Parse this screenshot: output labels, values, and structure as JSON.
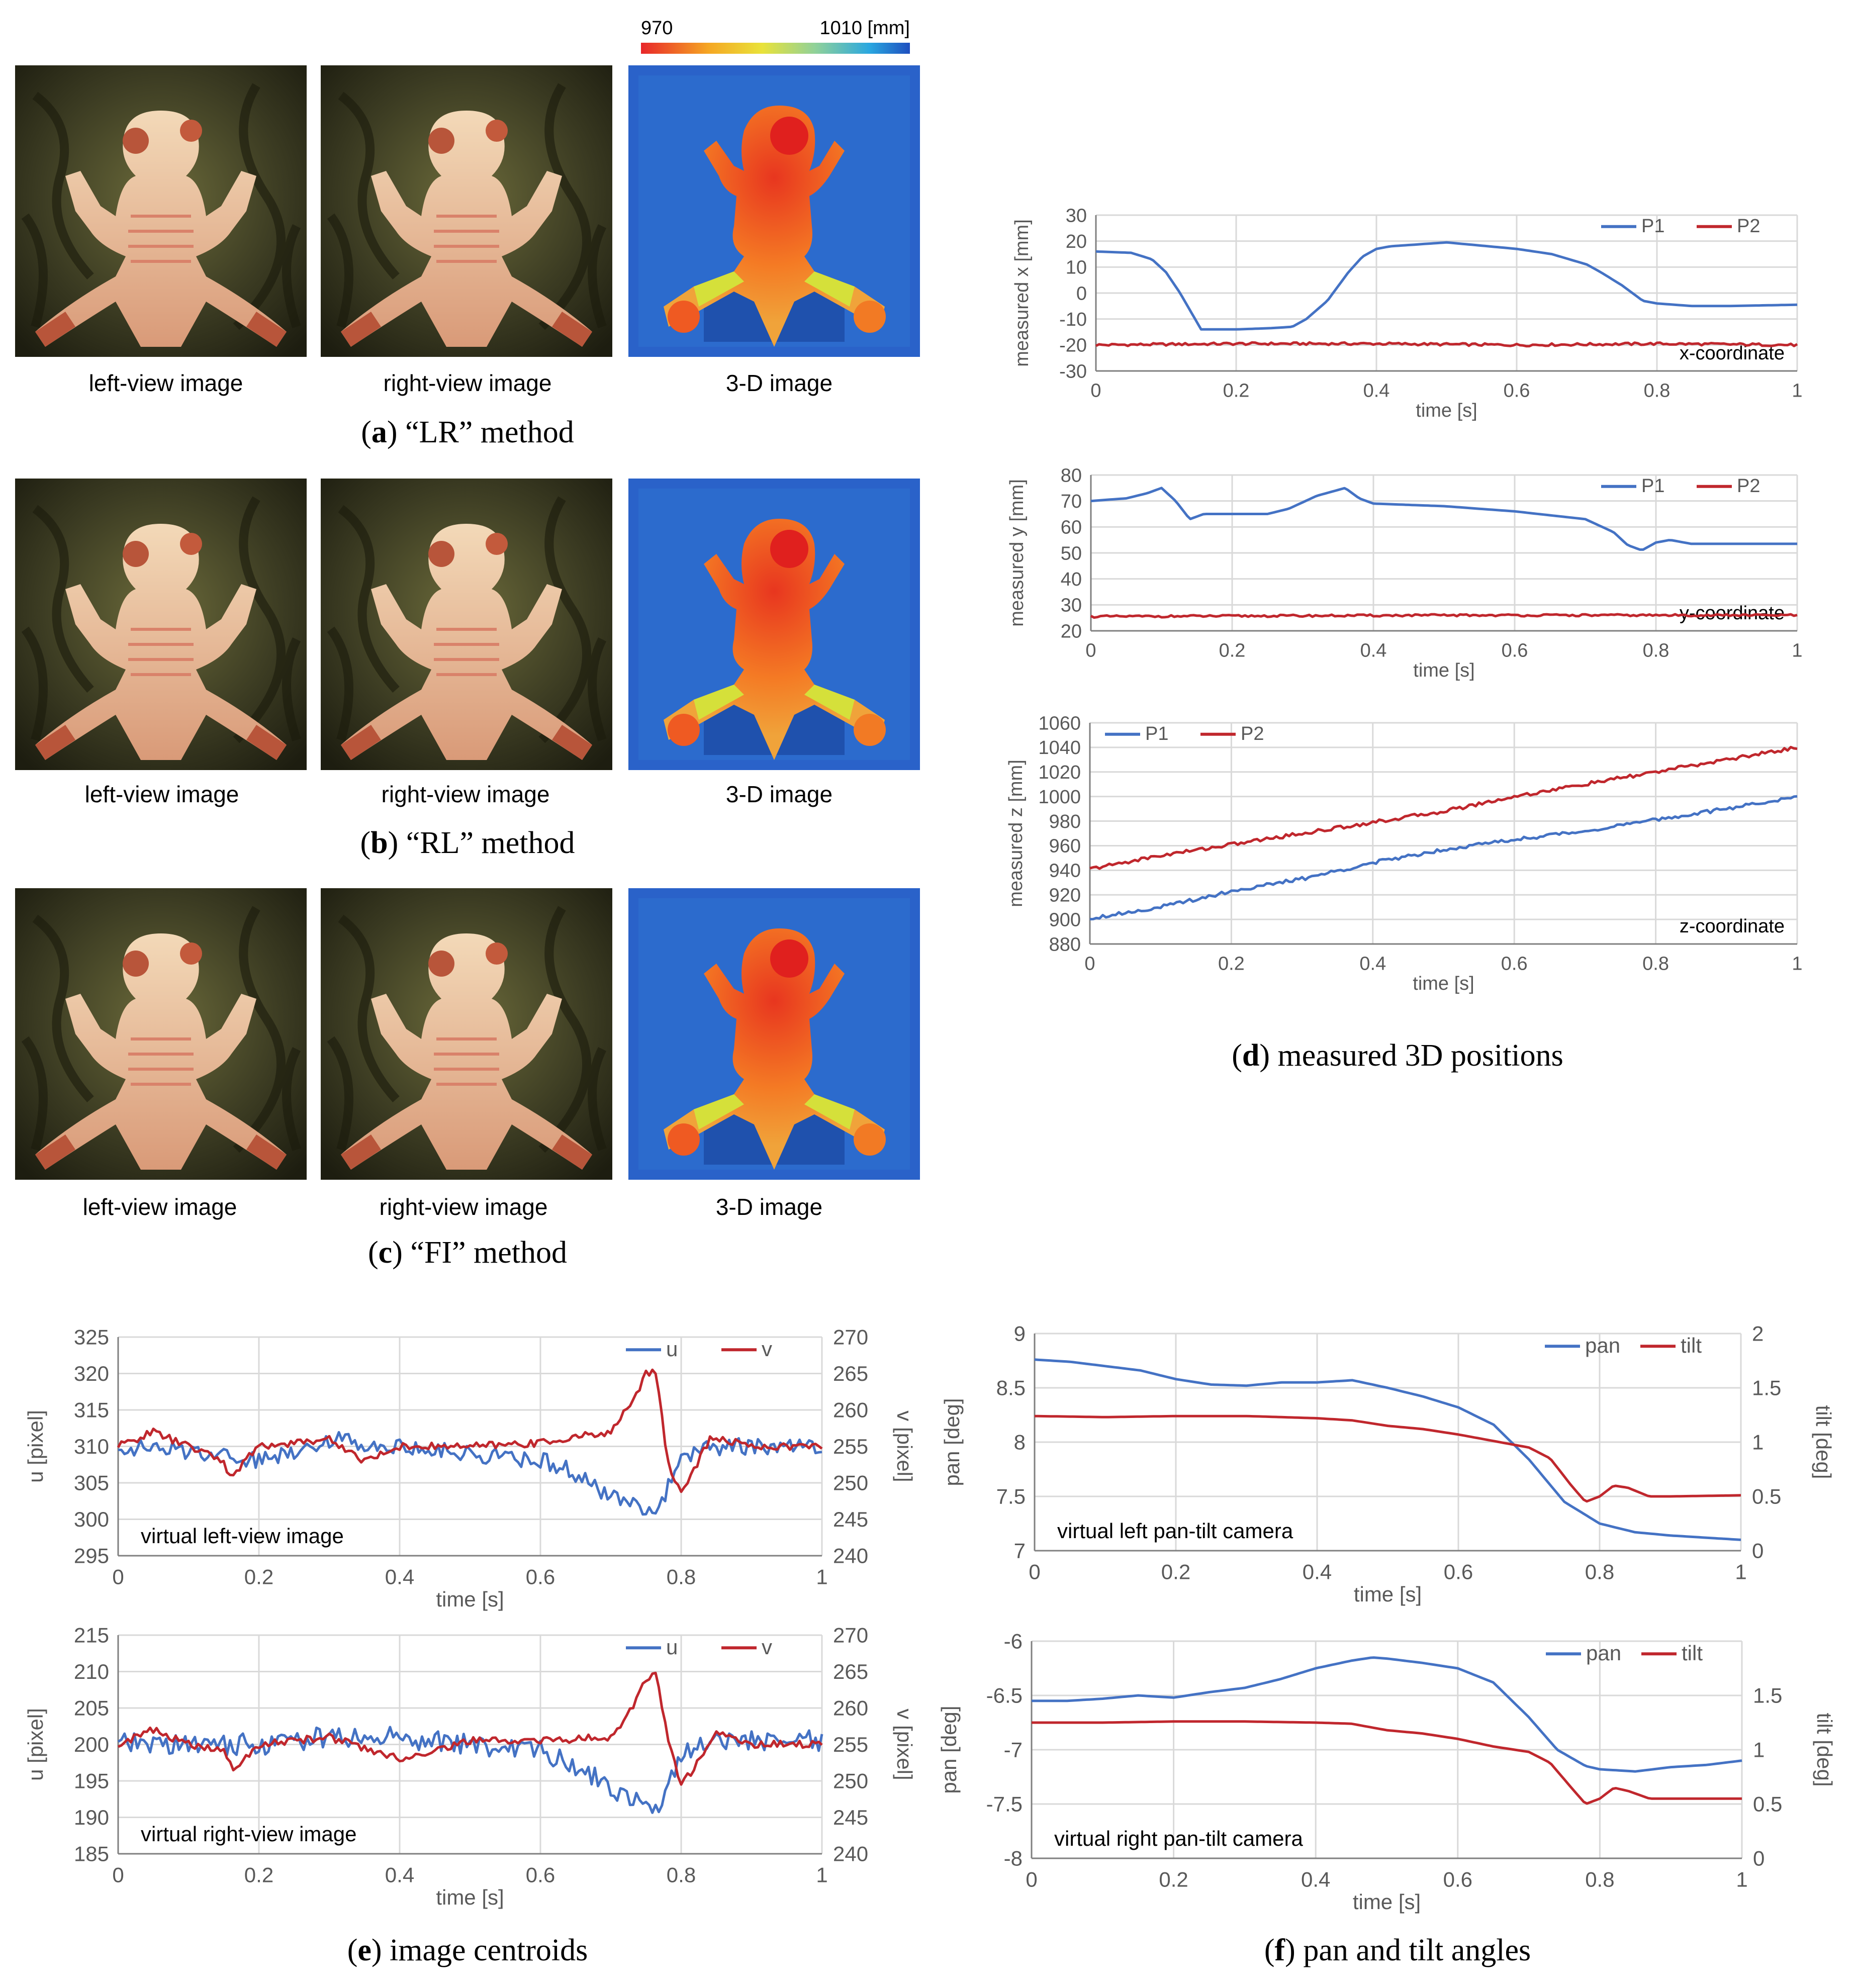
{
  "colorbar": {
    "min_label": "970",
    "max_label": "1010 [mm]"
  },
  "panels": {
    "a": {
      "letter": "a",
      "caption": "“LR” method",
      "labels": [
        "left-view image",
        "right-view image",
        "3-D image"
      ]
    },
    "b": {
      "letter": "b",
      "caption": "“RL” method",
      "labels": [
        "left-view image",
        "right-view image",
        "3-D image"
      ]
    },
    "c": {
      "letter": "c",
      "caption": "“FI” method",
      "labels": [
        "left-view image",
        "right-view image",
        "3-D image"
      ]
    },
    "d": {
      "letter": "d",
      "caption": "measured 3D positions"
    },
    "e": {
      "letter": "e",
      "caption": "image centroids"
    },
    "f": {
      "letter": "f",
      "caption": "pan and tilt angles"
    }
  },
  "colors": {
    "blue": "#4472c4",
    "red": "#c0272d",
    "grid": "#d9d9d9",
    "axis": "#7f7f7f",
    "text": "#595959"
  },
  "chart_data": [
    {
      "id": "dx",
      "type": "line",
      "title": "",
      "annotation": "x-coordinate",
      "xlabel": "time [s]",
      "ylabel": "measured  x [mm]",
      "xlim": [
        0,
        1
      ],
      "ylim": [
        -30,
        30
      ],
      "xticks": [
        "0",
        "0.2",
        "0.4",
        "0.6",
        "0.8",
        "1"
      ],
      "yticks": [
        "-30",
        "-20",
        "-10",
        "0",
        "10",
        "20",
        "30"
      ],
      "legend": "top-right",
      "series": [
        {
          "name": "P1",
          "color": "#4472c4",
          "x": [
            0,
            0.05,
            0.08,
            0.1,
            0.12,
            0.15,
            0.2,
            0.25,
            0.28,
            0.3,
            0.33,
            0.36,
            0.38,
            0.4,
            0.42,
            0.5,
            0.6,
            0.65,
            0.7,
            0.72,
            0.75,
            0.78,
            0.8,
            0.85,
            0.9,
            1.0
          ],
          "y": [
            16,
            15.5,
            13,
            8,
            0,
            -14,
            -14,
            -13.5,
            -13,
            -10,
            -3,
            8,
            14,
            17,
            18,
            19.5,
            17,
            15,
            11,
            8,
            3,
            -3,
            -4,
            -5,
            -5,
            -4.5
          ]
        },
        {
          "name": "P2",
          "color": "#c0272d",
          "x": [
            0,
            0.2,
            0.4,
            0.6,
            0.8,
            1.0
          ],
          "y": [
            -20,
            -19.5,
            -19.5,
            -20,
            -19.5,
            -20
          ],
          "noise": 0.5
        }
      ]
    },
    {
      "id": "dy",
      "type": "line",
      "title": "",
      "annotation": "y-coordinate",
      "xlabel": "time [s]",
      "ylabel": "measured  y [mm]",
      "xlim": [
        0,
        1
      ],
      "ylim": [
        20,
        80
      ],
      "xticks": [
        "0",
        "0.2",
        "0.4",
        "0.6",
        "0.8",
        "1"
      ],
      "yticks": [
        "20",
        "30",
        "40",
        "50",
        "60",
        "70",
        "80"
      ],
      "legend": "top-right",
      "series": [
        {
          "name": "P1",
          "color": "#4472c4",
          "x": [
            0,
            0.05,
            0.08,
            0.1,
            0.12,
            0.14,
            0.16,
            0.2,
            0.25,
            0.28,
            0.32,
            0.36,
            0.38,
            0.4,
            0.5,
            0.6,
            0.7,
            0.74,
            0.76,
            0.78,
            0.8,
            0.82,
            0.85,
            1.0
          ],
          "y": [
            70,
            71,
            73,
            75,
            70,
            63,
            65,
            65,
            65,
            67,
            72,
            75,
            71,
            69,
            68,
            66,
            63,
            58,
            53,
            51,
            54,
            55,
            53.5,
            53.5
          ]
        },
        {
          "name": "P2",
          "color": "#c0272d",
          "x": [
            0,
            0.5,
            1.0
          ],
          "y": [
            25.5,
            26,
            26
          ],
          "noise": 0.4
        }
      ]
    },
    {
      "id": "dz",
      "type": "line",
      "title": "",
      "annotation": "z-coordinate",
      "xlabel": "time [s]",
      "ylabel": "measured  z [mm]",
      "xlim": [
        0,
        1
      ],
      "ylim": [
        880,
        1060
      ],
      "xticks": [
        "0",
        "0.2",
        "0.4",
        "0.6",
        "0.8",
        "1"
      ],
      "yticks": [
        "880",
        "900",
        "920",
        "940",
        "960",
        "980",
        "1000",
        "1020",
        "1040",
        "1060"
      ],
      "legend": "top-left",
      "series": [
        {
          "name": "P1",
          "color": "#4472c4",
          "x": [
            0,
            0.1,
            0.2,
            0.3,
            0.4,
            0.5,
            0.6,
            0.7,
            0.8,
            0.9,
            1.0
          ],
          "y": [
            901,
            910,
            923,
            933,
            946,
            957,
            965,
            972,
            981,
            990,
            1000
          ],
          "noise": 1.5
        },
        {
          "name": "P2",
          "color": "#c0272d",
          "x": [
            0,
            0.1,
            0.2,
            0.3,
            0.4,
            0.5,
            0.6,
            0.7,
            0.8,
            0.9,
            1.0
          ],
          "y": [
            941,
            952,
            961,
            970,
            979,
            988,
            1000,
            1010,
            1020,
            1030,
            1040
          ],
          "noise": 1.5
        }
      ]
    },
    {
      "id": "e1",
      "type": "line",
      "title": "",
      "annotation": "virtual left-view image",
      "xlabel": "time [s]",
      "ylabel": "u [pixel]",
      "y2label": "v [pixel]",
      "xlim": [
        0,
        1
      ],
      "ylim": [
        295,
        325
      ],
      "y2lim": [
        240,
        270
      ],
      "xticks": [
        "0",
        "0.2",
        "0.4",
        "0.6",
        "0.8",
        "1"
      ],
      "yticks": [
        "295",
        "300",
        "305",
        "310",
        "315",
        "320",
        "325"
      ],
      "y2ticks": [
        "240",
        "245",
        "250",
        "255",
        "260",
        "265",
        "270"
      ],
      "legend": "top-right",
      "series": [
        {
          "name": "u",
          "color": "#4472c4",
          "axis": "left",
          "x": [
            0,
            0.15,
            0.2,
            0.3,
            0.4,
            0.5,
            0.6,
            0.64,
            0.68,
            0.7,
            0.74,
            0.76,
            0.77,
            0.78,
            0.8,
            0.83,
            0.9,
            1.0
          ],
          "y": [
            310,
            309,
            308,
            311,
            310,
            309,
            308,
            307,
            304,
            303,
            302,
            301.5,
            302,
            304,
            308,
            310,
            310,
            310
          ],
          "noise": 1.2
        },
        {
          "name": "v",
          "color": "#c0272d",
          "axis": "right",
          "x": [
            0,
            0.05,
            0.1,
            0.15,
            0.16,
            0.18,
            0.2,
            0.3,
            0.35,
            0.4,
            0.5,
            0.6,
            0.7,
            0.73,
            0.75,
            0.765,
            0.78,
            0.8,
            0.82,
            0.84,
            0.86,
            0.9,
            1.0
          ],
          "y": [
            255,
            257,
            255,
            253,
            250.5,
            253,
            255,
            256,
            253,
            255,
            255,
            255.5,
            257,
            261,
            265,
            265.5,
            253,
            248.5,
            252,
            256,
            256,
            255,
            255
          ],
          "noise": 0.5
        }
      ]
    },
    {
      "id": "e2",
      "type": "line",
      "title": "",
      "annotation": "virtual right-view image",
      "xlabel": "time [s]",
      "ylabel": "u [pixel]",
      "y2label": "v [pixel]",
      "xlim": [
        0,
        1
      ],
      "ylim": [
        185,
        215
      ],
      "y2lim": [
        240,
        270
      ],
      "xticks": [
        "0",
        "0.2",
        "0.4",
        "0.6",
        "0.8",
        "1"
      ],
      "yticks": [
        "185",
        "190",
        "195",
        "200",
        "205",
        "210",
        "215"
      ],
      "y2ticks": [
        "240",
        "245",
        "250",
        "255",
        "260",
        "265",
        "270"
      ],
      "legend": "top-right",
      "series": [
        {
          "name": "u",
          "color": "#4472c4",
          "axis": "left",
          "x": [
            0,
            0.2,
            0.3,
            0.4,
            0.5,
            0.6,
            0.65,
            0.7,
            0.74,
            0.76,
            0.77,
            0.78,
            0.8,
            0.85,
            0.9,
            1.0
          ],
          "y": [
            200,
            200,
            201,
            201,
            200,
            199,
            197,
            194,
            192.5,
            192,
            191.5,
            194,
            199,
            200.5,
            200.5,
            200.5
          ],
          "noise": 1.5
        },
        {
          "name": "v",
          "color": "#c0272d",
          "axis": "right",
          "x": [
            0,
            0.05,
            0.1,
            0.15,
            0.165,
            0.18,
            0.2,
            0.3,
            0.4,
            0.5,
            0.6,
            0.7,
            0.73,
            0.75,
            0.765,
            0.78,
            0.8,
            0.82,
            0.85,
            0.9,
            1.0
          ],
          "y": [
            255,
            257,
            255,
            254,
            251.5,
            253,
            255,
            256,
            253,
            255.5,
            255.5,
            256,
            260,
            264,
            265,
            256,
            249.5,
            252,
            256.5,
            255,
            255
          ],
          "noise": 0.5
        }
      ]
    },
    {
      "id": "f1",
      "type": "line",
      "title": "",
      "annotation": "virtual left pan-tilt camera",
      "xlabel": "time [s]",
      "ylabel": "pan [deg]",
      "y2label": "tilt [deg]",
      "xlim": [
        0,
        1
      ],
      "ylim": [
        7,
        9
      ],
      "y2lim": [
        0,
        2
      ],
      "xticks": [
        "0",
        "0.2",
        "0.4",
        "0.6",
        "0.8",
        "1"
      ],
      "yticks": [
        "7",
        "7.5",
        "8",
        "8.5",
        "9"
      ],
      "y2ticks": [
        "0",
        "0.5",
        "1",
        "1.5",
        "2"
      ],
      "legend": "top-right",
      "series": [
        {
          "name": "pan",
          "color": "#4472c4",
          "axis": "left",
          "x": [
            0,
            0.05,
            0.1,
            0.15,
            0.2,
            0.25,
            0.3,
            0.35,
            0.4,
            0.45,
            0.5,
            0.55,
            0.6,
            0.65,
            0.7,
            0.75,
            0.8,
            0.85,
            0.9,
            0.95,
            1.0
          ],
          "y": [
            8.76,
            8.74,
            8.7,
            8.66,
            8.58,
            8.53,
            8.52,
            8.55,
            8.55,
            8.57,
            8.5,
            8.42,
            8.32,
            8.16,
            7.84,
            7.45,
            7.25,
            7.17,
            7.14,
            7.12,
            7.1
          ]
        },
        {
          "name": "tilt",
          "color": "#c0272d",
          "axis": "right",
          "x": [
            0,
            0.1,
            0.2,
            0.3,
            0.4,
            0.45,
            0.5,
            0.55,
            0.6,
            0.65,
            0.7,
            0.73,
            0.76,
            0.78,
            0.8,
            0.82,
            0.84,
            0.87,
            0.9,
            1.0
          ],
          "y": [
            1.24,
            1.23,
            1.24,
            1.24,
            1.22,
            1.2,
            1.15,
            1.12,
            1.07,
            1.01,
            0.95,
            0.85,
            0.6,
            0.45,
            0.5,
            0.6,
            0.58,
            0.5,
            0.5,
            0.51
          ]
        }
      ]
    },
    {
      "id": "f2",
      "type": "line",
      "title": "",
      "annotation": "virtual right pan-tilt camera",
      "xlabel": "time [s]",
      "ylabel": "pan [deg]",
      "y2label": "tilt [deg]",
      "xlim": [
        0,
        1
      ],
      "ylim": [
        -8,
        -6
      ],
      "y2lim": [
        0,
        2
      ],
      "xticks": [
        "0",
        "0.2",
        "0.4",
        "0.6",
        "0.8",
        "1"
      ],
      "yticks": [
        "-8",
        "-7.5",
        "-7",
        "-6.5",
        "-6"
      ],
      "y2ticks": [
        "0",
        "0.5",
        "1",
        "1.5"
      ],
      "legend": "top-right",
      "series": [
        {
          "name": "pan",
          "color": "#4472c4",
          "axis": "left",
          "x": [
            0,
            0.05,
            0.1,
            0.15,
            0.2,
            0.25,
            0.3,
            0.35,
            0.4,
            0.45,
            0.48,
            0.5,
            0.55,
            0.6,
            0.65,
            0.7,
            0.74,
            0.78,
            0.8,
            0.85,
            0.9,
            0.95,
            1.0
          ],
          "y": [
            -6.55,
            -6.55,
            -6.53,
            -6.5,
            -6.52,
            -6.47,
            -6.43,
            -6.35,
            -6.25,
            -6.18,
            -6.15,
            -6.16,
            -6.2,
            -6.25,
            -6.38,
            -6.7,
            -7.0,
            -7.15,
            -7.18,
            -7.2,
            -7.16,
            -7.14,
            -7.1
          ]
        },
        {
          "name": "tilt",
          "color": "#c0272d",
          "axis": "right",
          "x": [
            0,
            0.1,
            0.2,
            0.3,
            0.4,
            0.45,
            0.5,
            0.55,
            0.6,
            0.65,
            0.7,
            0.73,
            0.76,
            0.78,
            0.8,
            0.82,
            0.84,
            0.87,
            0.9,
            1.0
          ],
          "y": [
            1.25,
            1.25,
            1.26,
            1.26,
            1.25,
            1.24,
            1.18,
            1.15,
            1.1,
            1.03,
            0.98,
            0.88,
            0.65,
            0.5,
            0.55,
            0.65,
            0.62,
            0.55,
            0.55,
            0.55
          ]
        }
      ]
    }
  ]
}
